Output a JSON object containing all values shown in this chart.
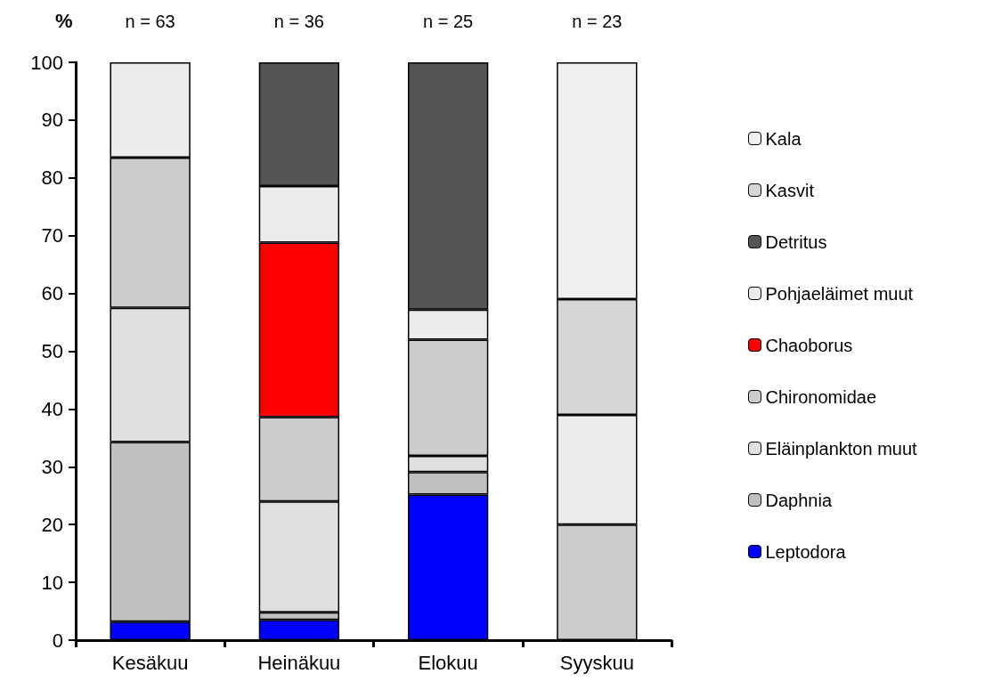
{
  "chart_data": {
    "type": "bar",
    "stacked": true,
    "ylabel": "%",
    "categories": [
      "Kesäkuu",
      "Heinäkuu",
      "Elokuu",
      "Syyskuu"
    ],
    "ylim": [
      0,
      100
    ],
    "yticks": [
      0,
      10,
      20,
      30,
      40,
      50,
      60,
      70,
      80,
      90,
      100
    ],
    "grid": false,
    "legend": "right",
    "series": [
      {
        "name": "Leptodora",
        "color": "#0000ff",
        "values": [
          3.2,
          3.5,
          25.2,
          null
        ]
      },
      {
        "name": "Daphnia",
        "color": "#c0c0c0",
        "values": [
          31.1,
          1.3,
          3.9,
          null
        ]
      },
      {
        "name": "Eläinplankton muut",
        "color": "#e0e0e0",
        "values": [
          23.2,
          19.2,
          2.8,
          null
        ]
      },
      {
        "name": "Chironomidae",
        "color": "#cccccc",
        "values": [
          26,
          14.6,
          20.1,
          20
        ]
      },
      {
        "name": "Chaoborus",
        "color": "#ff0000",
        "values": [
          null,
          30.2,
          null,
          null
        ]
      },
      {
        "name": "Pohjaeläimet muut",
        "color": "#ececec",
        "values": [
          16.5,
          9.8,
          5.2,
          19
        ]
      },
      {
        "name": "Detritus",
        "color": "#555555",
        "values": [
          null,
          21.4,
          42.8,
          null
        ]
      },
      {
        "name": "Kasvit",
        "color": "#d6d6d6",
        "values": [
          null,
          null,
          null,
          20
        ]
      },
      {
        "name": "Kala",
        "color": "#f0f0f0",
        "values": [
          null,
          null,
          null,
          41
        ]
      }
    ],
    "annotations": [
      "n = 63",
      "n = 36",
      "n = 25",
      "n = 23"
    ]
  }
}
